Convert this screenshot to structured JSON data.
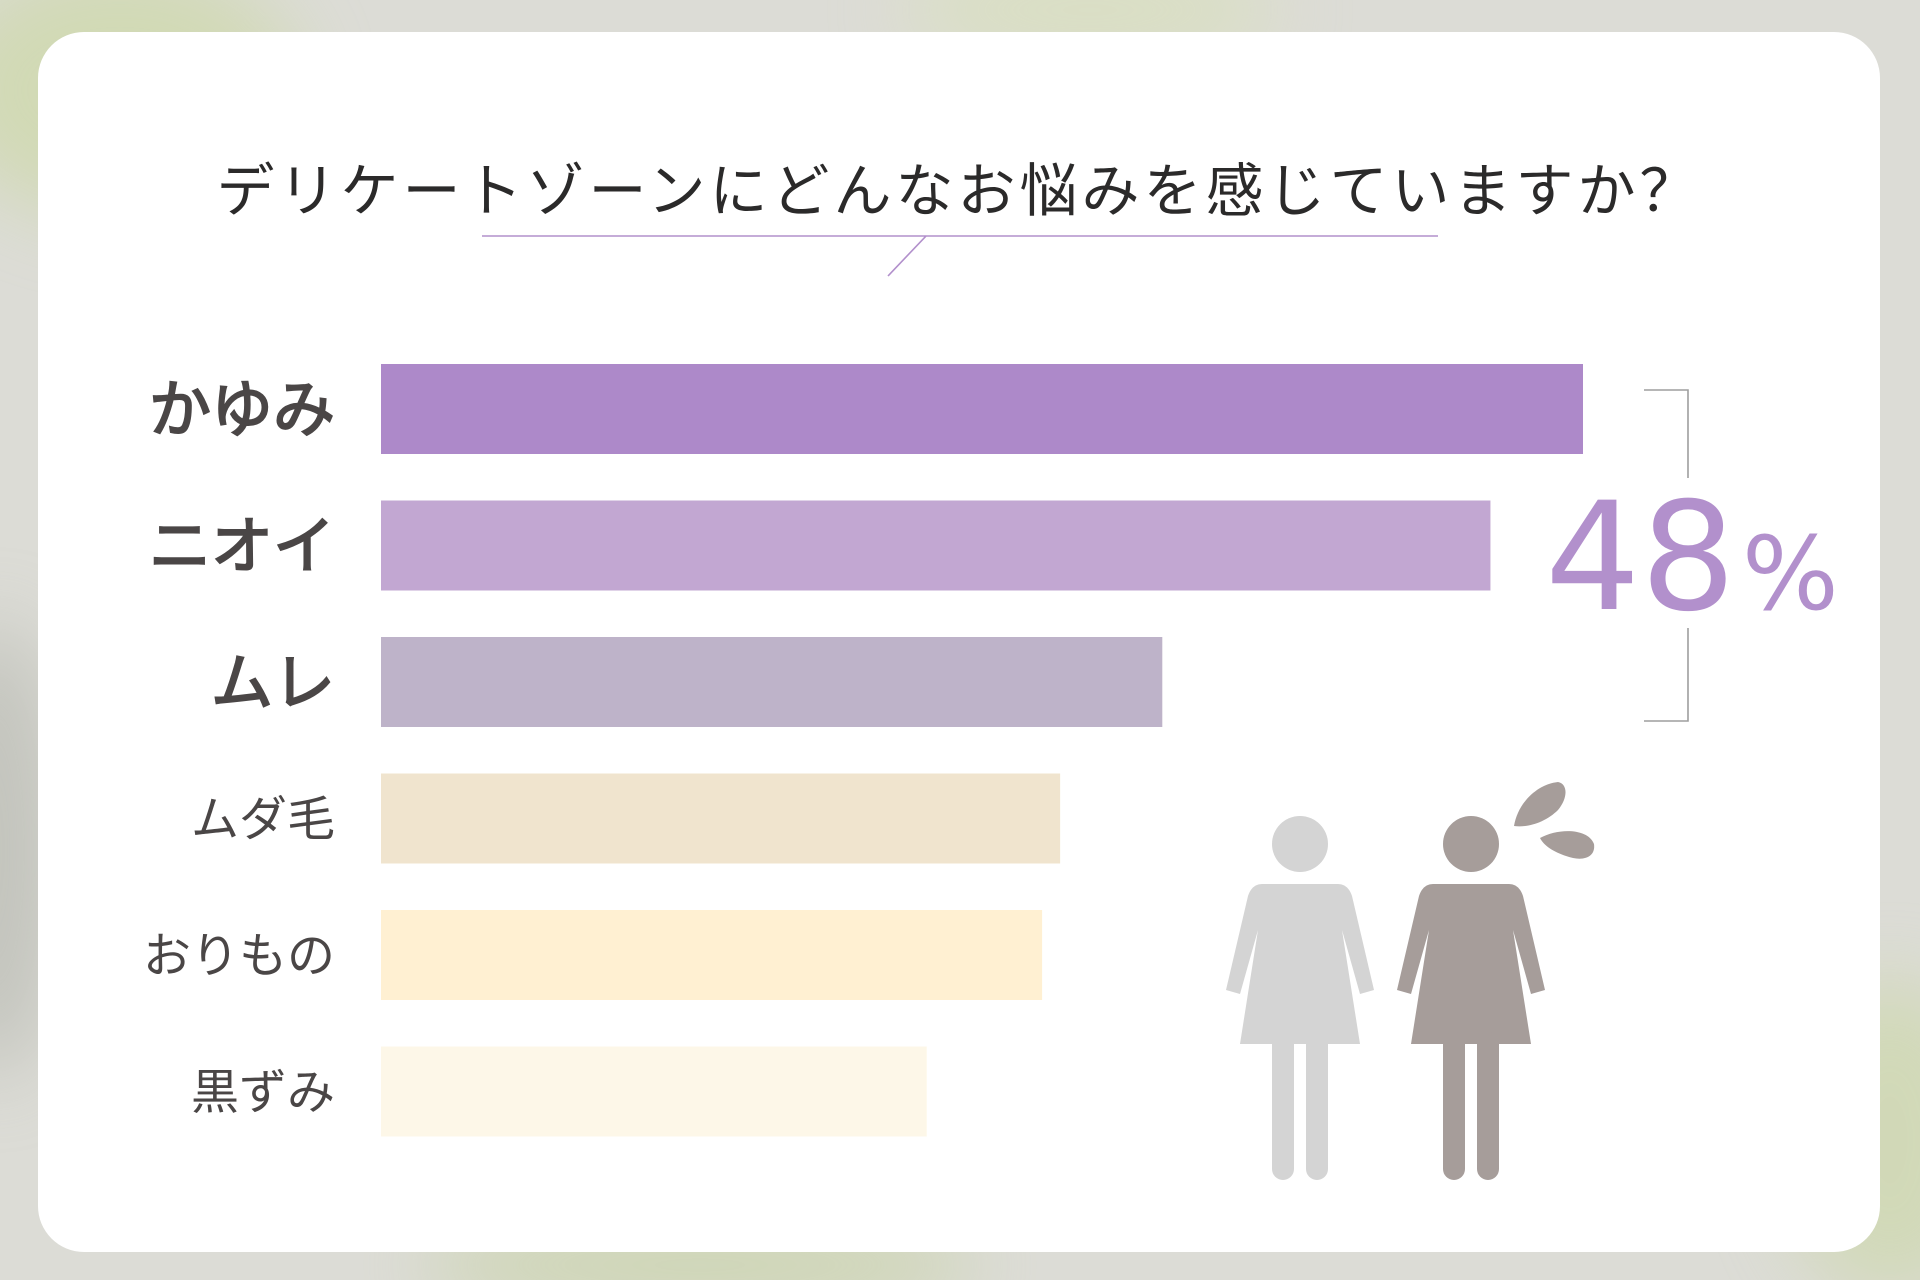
{
  "chart_data": {
    "type": "bar",
    "orientation": "horizontal",
    "title": "デリケートゾーンにどんなお悩みを感じていますか？",
    "categories": [
      "かゆみ",
      "ニオイ",
      "ムレ",
      "ムダ毛",
      "おりもの",
      "黒ずみ"
    ],
    "values": [
      100,
      92.3,
      65,
      56.5,
      55,
      45.4
    ],
    "emphasized_categories": [
      "かゆみ",
      "ニオイ",
      "ムレ"
    ],
    "bracket_label": "48%",
    "xlim": [
      0,
      100
    ],
    "grid": false,
    "legend": "none",
    "bar_colors": [
      "#ad89c9",
      "#c2a7d2",
      "#beb3c9",
      "#f0e4ce",
      "#fff0d2",
      "#fdf7e8"
    ]
  },
  "colors": {
    "accent": "#b290cc",
    "label_text": "#4a4646",
    "title_text": "#2b2a2a",
    "figure_light": "#d4d4d4",
    "figure_dark": "#a69d9a",
    "bracket": "#9e9e9e"
  },
  "icons": [
    "woman-figure-icon",
    "worried-woman-figure-icon",
    "sweat-drop-icon"
  ]
}
